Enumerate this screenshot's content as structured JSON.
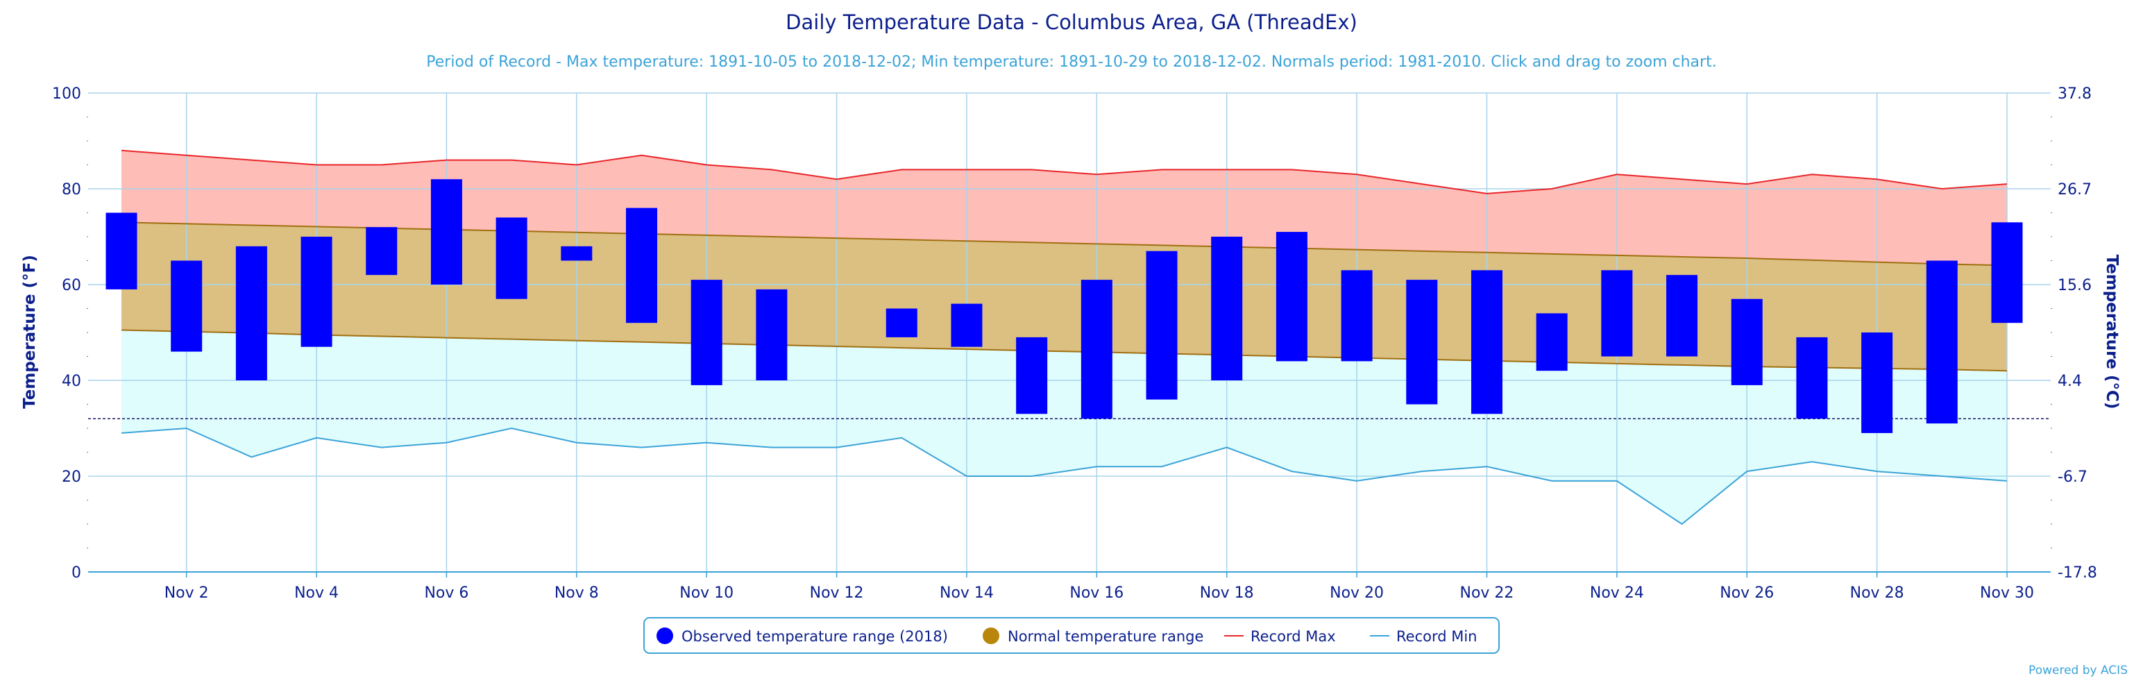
{
  "chart_data": {
    "type": "bar",
    "title": "Daily Temperature Data - Columbus Area, GA (ThreadEx)",
    "subtitle": "Period of Record - Max temperature: 1891-10-05 to 2018-12-02; Min temperature: 1891-10-29 to 2018-12-02. Normals period: 1981-2010. Click and drag to zoom chart.",
    "ylabel_left": "Temperature (°F)",
    "ylabel_right": "Temperature (°C)",
    "ylim": [
      0,
      100
    ],
    "yticks_left": [
      "0",
      "20",
      "40",
      "60",
      "80",
      "100"
    ],
    "yticks_right": [
      "-17.8",
      "-6.7",
      "4.4",
      "15.6",
      "26.7",
      "37.8"
    ],
    "xlim": [
      1,
      30
    ],
    "xticks": [
      "Nov 2",
      "Nov 4",
      "Nov 6",
      "Nov 8",
      "Nov 10",
      "Nov 12",
      "Nov 14",
      "Nov 16",
      "Nov 18",
      "Nov 20",
      "Nov 22",
      "Nov 24",
      "Nov 26",
      "Nov 28",
      "Nov 30"
    ],
    "freeze_line": 32,
    "days": [
      1,
      2,
      3,
      4,
      5,
      6,
      7,
      8,
      9,
      10,
      11,
      12,
      13,
      14,
      15,
      16,
      17,
      18,
      19,
      20,
      21,
      22,
      23,
      24,
      25,
      26,
      27,
      28,
      29,
      30
    ],
    "series": [
      {
        "name": "Observed temperature range (2018)",
        "low": [
          59,
          46,
          40,
          47,
          62,
          60,
          57,
          65,
          52,
          39,
          40,
          null,
          49,
          47,
          33,
          32,
          36,
          40,
          44,
          44,
          35,
          33,
          42,
          45,
          45,
          39,
          32,
          29,
          31,
          52
        ],
        "high": [
          75,
          65,
          68,
          70,
          72,
          82,
          74,
          68,
          76,
          61,
          59,
          null,
          55,
          56,
          49,
          61,
          67,
          70,
          71,
          63,
          61,
          63,
          54,
          63,
          62,
          57,
          49,
          50,
          65,
          73
        ],
        "color": "#0000ff"
      },
      {
        "name": "Normal temperature range",
        "low": [
          50.5,
          50.2,
          49.9,
          49.5,
          49.2,
          48.9,
          48.6,
          48.3,
          48.0,
          47.7,
          47.4,
          47.1,
          46.8,
          46.5,
          46.2,
          45.9,
          45.6,
          45.3,
          45.0,
          44.7,
          44.4,
          44.1,
          43.8,
          43.5,
          43.2,
          42.9,
          42.7,
          42.5,
          42.3,
          42.0
        ],
        "high": [
          73.0,
          72.7,
          72.4,
          72.1,
          71.8,
          71.5,
          71.2,
          70.9,
          70.6,
          70.3,
          70.0,
          69.7,
          69.4,
          69.1,
          68.8,
          68.5,
          68.2,
          67.9,
          67.6,
          67.3,
          67.0,
          66.7,
          66.4,
          66.1,
          65.8,
          65.5,
          65.1,
          64.7,
          64.3,
          64.0
        ],
        "color": "#b8860b"
      },
      {
        "name": "Record Max",
        "values": [
          88,
          87,
          86,
          85,
          85,
          86,
          86,
          85,
          87,
          85,
          84,
          82,
          84,
          84,
          84,
          83,
          84,
          84,
          84,
          83,
          81,
          79,
          80,
          83,
          82,
          81,
          83,
          82,
          80,
          81
        ],
        "color": "#e8262a"
      },
      {
        "name": "Record Min",
        "values": [
          29,
          30,
          24,
          28,
          26,
          27,
          30,
          27,
          26,
          27,
          26,
          26,
          28,
          20,
          20,
          22,
          22,
          26,
          21,
          19,
          21,
          22,
          19,
          19,
          10,
          21,
          23,
          21,
          20,
          19
        ],
        "color": "#3ba3d8"
      }
    ],
    "legend_position": "bottom-center",
    "grid": true
  },
  "credit": "Powered by ACIS"
}
